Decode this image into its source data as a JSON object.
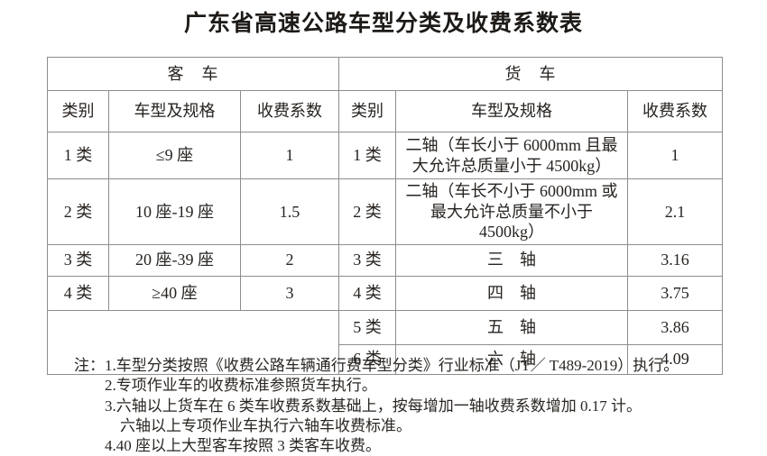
{
  "title": "广东省高速公路车型分类及收费系数表",
  "table": {
    "passenger": {
      "group_label": "客　车",
      "headers": {
        "class": "类别",
        "spec": "车型及规格",
        "coef": "收费系数"
      },
      "rows": [
        {
          "class": "1 类",
          "spec": "≤9 座",
          "coef": "1"
        },
        {
          "class": "2 类",
          "spec": "10 座-19 座",
          "coef": "1.5"
        },
        {
          "class": "3 类",
          "spec": "20 座-39 座",
          "coef": "2"
        },
        {
          "class": "4 类",
          "spec": "≥40 座",
          "coef": "3"
        }
      ],
      "empty_cell": ""
    },
    "truck": {
      "group_label": "货　车",
      "headers": {
        "class": "类别",
        "spec": "车型及规格",
        "coef": "收费系数"
      },
      "rows": [
        {
          "class": "1 类",
          "spec": "二轴（车长小于 6000mm 且最大允许总质量小于 4500kg）",
          "coef": "1"
        },
        {
          "class": "2 类",
          "spec": "二轴（车长不小于 6000mm 或最大允许总质量不小于 4500kg）",
          "coef": "2.1"
        },
        {
          "class": "3 类",
          "spec": "三　轴",
          "coef": "3.16"
        },
        {
          "class": "4 类",
          "spec": "四　轴",
          "coef": "3.75"
        },
        {
          "class": "5 类",
          "spec": "五　轴",
          "coef": "3.86"
        },
        {
          "class": "6 类",
          "spec": "六　轴",
          "coef": "4.09"
        }
      ]
    }
  },
  "notes": {
    "label": "注：",
    "items": [
      {
        "text": "1.车型分类按照《收费公路车辆通行费车型分类》行业标准（JT／ T489-2019）执行。"
      },
      {
        "text": "2.专项作业车的收费标准参照货车执行。"
      },
      {
        "text": "3.六轴以上货车在 6 类车收费系数基础上，按每增加一轴收费系数增加 0.17 计。"
      },
      {
        "text": "六轴以上专项作业车执行六轴车收费标准。"
      },
      {
        "text": "4.40 座以上大型客车按照 3 类客车收费。"
      }
    ]
  },
  "colors": {
    "text": "#272320",
    "border": "#8d8d8d",
    "background": "#ffffff"
  }
}
